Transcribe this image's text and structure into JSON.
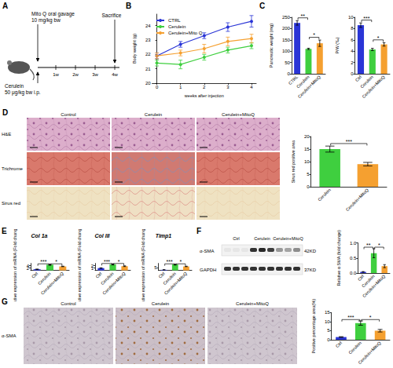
{
  "figure": {
    "panel_letters": [
      "A",
      "B",
      "C",
      "D",
      "E",
      "F",
      "G"
    ],
    "A": {
      "gavage": "Mito Q oral gavage",
      "gavage_dose": "10 mg/kg bw",
      "injection": "Cerulein",
      "injection_dose": "50 μg/kg bw i.p.",
      "timeline": [
        "1w",
        "2w",
        "3w",
        "4w"
      ],
      "end": "Sacrifice"
    },
    "D": {
      "columns": [
        "Control",
        "Cerulein",
        "Cerulein+MitoQ"
      ],
      "rows": [
        "H&E",
        "Trichrome",
        "Sirus red"
      ]
    },
    "F": {
      "columns": [
        "Ctrl",
        "Cerulein",
        "Cerulein+MitoQ"
      ],
      "rows": [
        {
          "name": "α-SMA",
          "size": "42KD"
        },
        {
          "name": "GAPDH",
          "size": "37KD"
        }
      ]
    },
    "G": {
      "columns": [
        "Control",
        "Cerulein",
        "Cerulein+MitoQ"
      ],
      "row": "α-SMA"
    }
  },
  "chart_data": [
    {
      "type": "line",
      "xlabel": "weeks after injection",
      "ylabel": "Body weight (g)",
      "x": [
        0,
        1,
        2,
        3,
        4
      ],
      "xlim": [
        -0.2,
        4.2
      ],
      "xticks": [
        0,
        1,
        2,
        3,
        4
      ],
      "ylim": [
        20,
        24.8
      ],
      "yticks": [
        20,
        21,
        22,
        23,
        24
      ],
      "legend": "upper left",
      "marker": "circle",
      "series": [
        {
          "name": "CTRL",
          "color": "#2a35d6",
          "values": [
            21.9,
            22.7,
            23.3,
            23.9,
            24.3
          ],
          "errors": [
            0.2,
            0.2,
            0.2,
            0.3,
            0.4
          ]
        },
        {
          "name": "Cerulein",
          "color": "#3fcf3f",
          "values": [
            21.4,
            21.3,
            21.8,
            22.3,
            22.6
          ],
          "errors": [
            0.2,
            0.3,
            0.2,
            0.2,
            0.2
          ]
        },
        {
          "name": "Cerulein+Mito Q",
          "color": "#f5a030",
          "values": [
            21.9,
            22.1,
            22.4,
            22.9,
            23.1
          ],
          "errors": [
            0.2,
            0.2,
            0.3,
            0.3,
            0.3
          ]
        }
      ]
    },
    {
      "type": "bar",
      "ylabel": "Pancreatic weight (mg)",
      "categories": [
        "CTRL",
        "Cerulein",
        "Cerulein+MitoQ"
      ],
      "values": [
        225,
        110,
        135
      ],
      "errors": [
        10,
        3,
        14
      ],
      "colors": [
        "#2a35d6",
        "#3fcf3f",
        "#f5a030"
      ],
      "ylim": [
        0,
        250
      ],
      "yticks": [
        0,
        50,
        100,
        150,
        200,
        250
      ],
      "significance": [
        {
          "pair": [
            0,
            1
          ],
          "label": "**"
        },
        {
          "pair": [
            1,
            2
          ],
          "label": "*"
        }
      ]
    },
    {
      "type": "bar",
      "ylabel": "P/W (‰)",
      "categories": [
        "Ctrl",
        "Cerulein",
        "Cerulein+MitoQ"
      ],
      "values": [
        8.6,
        4.3,
        5.2
      ],
      "errors": [
        0.4,
        0.2,
        0.3
      ],
      "colors": [
        "#2a35d6",
        "#3fcf3f",
        "#f5a030"
      ],
      "ylim": [
        0,
        10
      ],
      "yticks": [
        0,
        2,
        4,
        6,
        8,
        10
      ],
      "significance": [
        {
          "pair": [
            0,
            1
          ],
          "label": "***"
        },
        {
          "pair": [
            1,
            2
          ],
          "label": "*"
        }
      ]
    },
    {
      "type": "bar",
      "ylabel": "Sirus red positive area",
      "categories": [
        "Cerulein",
        "Cerulein+MitoQ"
      ],
      "values": [
        15,
        9
      ],
      "errors": [
        1.2,
        0.7
      ],
      "colors": [
        "#3fcf3f",
        "#f5a030"
      ],
      "ylim": [
        0,
        20
      ],
      "yticks": [
        0,
        5,
        10,
        15,
        20
      ],
      "significance": [
        {
          "pair": [
            0,
            1
          ],
          "label": "***"
        }
      ]
    },
    {
      "type": "bar",
      "title": "Col 1a",
      "ylabel": "Relative expression of mRNA (Fold change)",
      "categories": [
        "Ctrl",
        "Cerulein",
        "Cerulein+MitoQ"
      ],
      "values": [
        1,
        4.9,
        3.4
      ],
      "errors": [
        0.1,
        0.4,
        0.2
      ],
      "colors": [
        "#2a35d6",
        "#3fcf3f",
        "#f5a030"
      ],
      "ylim": [
        0,
        6
      ],
      "yticks": [
        0,
        2,
        4,
        6
      ],
      "significance": [
        {
          "pair": [
            0,
            1
          ],
          "label": "***"
        },
        {
          "pair": [
            1,
            2
          ],
          "label": "*"
        }
      ]
    },
    {
      "type": "bar",
      "title": "Col III",
      "ylabel": "Relative expression of mRNA (Fold change)",
      "categories": [
        "Ctrl",
        "Cerulein",
        "Cerulein+MitoQ"
      ],
      "values": [
        1,
        2.6,
        1.8
      ],
      "errors": [
        0.1,
        0.2,
        0.15
      ],
      "colors": [
        "#2a35d6",
        "#3fcf3f",
        "#f5a030"
      ],
      "ylim": [
        0,
        3
      ],
      "yticks": [
        0,
        1,
        2,
        3
      ],
      "significance": [
        {
          "pair": [
            0,
            1
          ],
          "label": "***"
        },
        {
          "pair": [
            1,
            2
          ],
          "label": "*"
        }
      ]
    },
    {
      "type": "bar",
      "title": "Timp1",
      "ylabel": "Relative expression of mRNA (Fold change)",
      "categories": [
        "Ctrl",
        "Cerulein",
        "Cerulein+MitoQ"
      ],
      "values": [
        1,
        10.2,
        6.8
      ],
      "errors": [
        0.2,
        0.4,
        0.4
      ],
      "colors": [
        "#2a35d6",
        "#3fcf3f",
        "#f5a030"
      ],
      "ylim": [
        0,
        12
      ],
      "yticks": [
        0,
        5,
        10
      ],
      "significance": [
        {
          "pair": [
            0,
            1
          ],
          "label": "***"
        },
        {
          "pair": [
            1,
            2
          ],
          "label": "*"
        }
      ]
    },
    {
      "type": "bar",
      "ylabel": "Relative α SMA (fold change)",
      "categories": [
        "Ctrl",
        "Cerulein",
        "Cerulein+MitoQ"
      ],
      "values": [
        0.04,
        0.66,
        0.23
      ],
      "errors": [
        0.01,
        0.15,
        0.05
      ],
      "colors": [
        "#2a35d6",
        "#3fcf3f",
        "#f5a030"
      ],
      "ylim": [
        0,
        1
      ],
      "yticks": [
        {
          "value": 0,
          "label": "0.0"
        },
        0.5,
        {
          "value": 1,
          "label": "1.0"
        }
      ],
      "significance": [
        {
          "pair": [
            0,
            1
          ],
          "label": "**"
        },
        {
          "pair": [
            1,
            2
          ],
          "label": "*"
        }
      ]
    },
    {
      "type": "bar",
      "ylabel": "Positive percentage area(%)",
      "categories": [
        "Ctrl",
        "Cerulein",
        "Cerulein+MitoQ"
      ],
      "values": [
        1.5,
        9.2,
        5.0
      ],
      "errors": [
        0.2,
        1.2,
        0.7
      ],
      "colors": [
        "#2a35d6",
        "#3fcf3f",
        "#f5a030"
      ],
      "ylim": [
        0,
        15
      ],
      "yticks": [
        0,
        5,
        10,
        15
      ],
      "significance": [
        {
          "pair": [
            0,
            1
          ],
          "label": "***"
        },
        {
          "pair": [
            1,
            2
          ],
          "label": "*"
        }
      ]
    }
  ]
}
